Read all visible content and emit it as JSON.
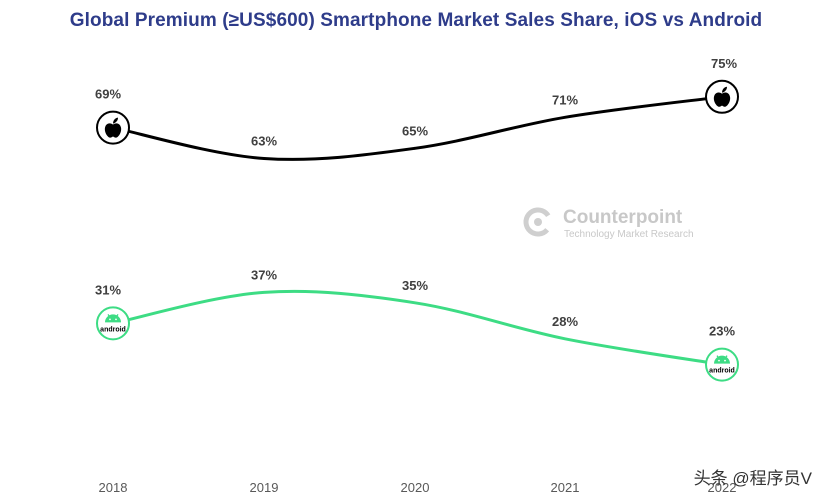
{
  "chart_data": {
    "type": "line",
    "title": "Global Premium (≥US$600) Smartphone Market Sales Share, iOS vs Android",
    "xlabel": "",
    "ylabel": "",
    "categories": [
      "2018",
      "2019",
      "2020",
      "2021",
      "2022"
    ],
    "series": [
      {
        "name": "iOS",
        "color": "#000000",
        "icon": "apple-icon",
        "values": [
          69,
          63,
          65,
          71,
          75
        ],
        "labels": [
          "69%",
          "63%",
          "65%",
          "71%",
          "75%"
        ]
      },
      {
        "name": "Android",
        "color": "#3ddc84",
        "icon": "android-icon",
        "icon_text": "android",
        "values": [
          31,
          37,
          35,
          28,
          23
        ],
        "labels": [
          "31%",
          "37%",
          "35%",
          "28%",
          "23%"
        ]
      }
    ],
    "grid": false,
    "legend": "none"
  },
  "watermark": {
    "brand": "Counterpoint",
    "tagline": "Technology Market Research"
  },
  "credit": "头条 @程序员V",
  "colors": {
    "title": "#2e3c8a",
    "axis_text": "#595959",
    "label_text": "#404040",
    "watermark": "#c8c8c8"
  }
}
